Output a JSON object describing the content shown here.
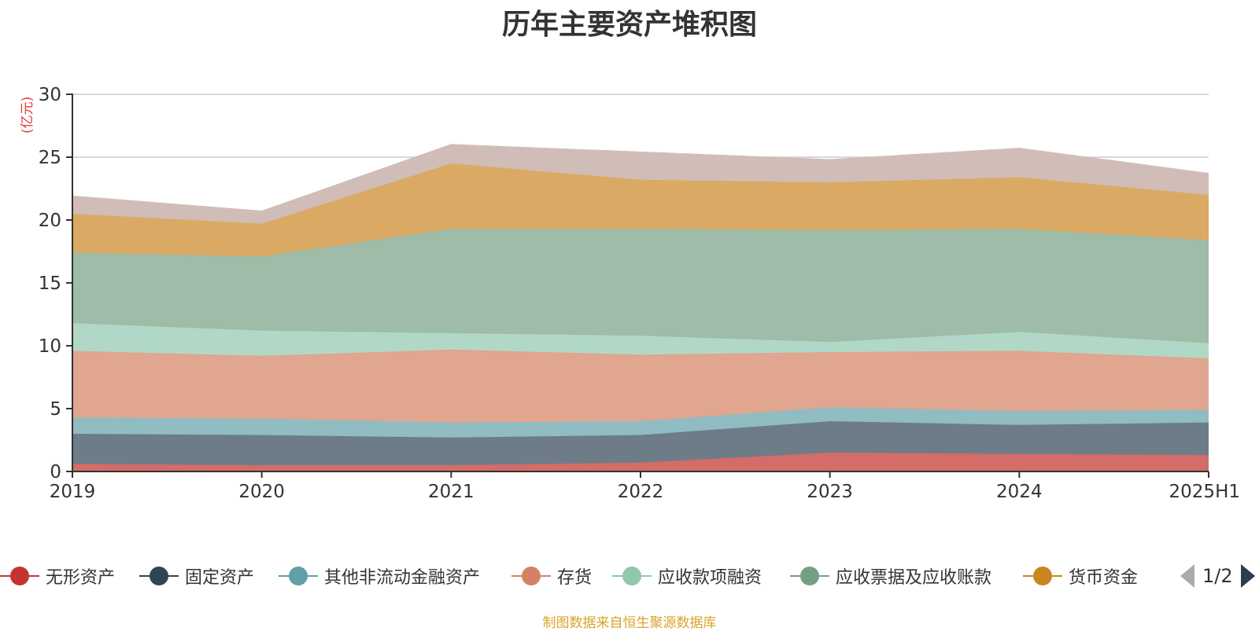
{
  "chart_data": {
    "type": "area",
    "stacked": true,
    "title": "历年主要资产堆积图",
    "ylabel": "(亿元)",
    "xlabel": "",
    "categories": [
      "2019",
      "2020",
      "2021",
      "2022",
      "2023",
      "2024",
      "2025H1"
    ],
    "ylim": [
      0,
      30
    ],
    "yticks": [
      0,
      5,
      10,
      15,
      20,
      25,
      30
    ],
    "grid": true,
    "legend_position": "bottom",
    "series": [
      {
        "name": "无形资产",
        "color": "#c23531",
        "fill": "#d46c69",
        "values": [
          0.6,
          0.5,
          0.5,
          0.7,
          1.5,
          1.4,
          1.3
        ]
      },
      {
        "name": "固定资产",
        "color": "#2f4554",
        "fill": "#6e7c87",
        "values": [
          2.4,
          2.4,
          2.2,
          2.2,
          2.5,
          2.3,
          2.6
        ]
      },
      {
        "name": "其他非流动金融资产",
        "color": "#61a0a8",
        "fill": "#90bcc2",
        "values": [
          1.3,
          1.3,
          1.2,
          1.1,
          1.1,
          1.1,
          1.0
        ]
      },
      {
        "name": "存货",
        "color": "#d48265",
        "fill": "#e0a690",
        "values": [
          5.3,
          5.0,
          5.8,
          5.3,
          4.4,
          4.8,
          4.1
        ]
      },
      {
        "name": "应收款项融资",
        "color": "#91c7ae",
        "fill": "#b1d8c6",
        "values": [
          2.2,
          2.0,
          1.3,
          1.5,
          0.8,
          1.5,
          1.2
        ]
      },
      {
        "name": "应收票据及应收账款",
        "color": "#749f83",
        "fill": "#9ebca8",
        "values": [
          5.6,
          5.9,
          8.3,
          8.5,
          8.9,
          8.2,
          8.2
        ]
      },
      {
        "name": "货币资金",
        "color": "#ca8622",
        "fill": "#daa964",
        "values": [
          3.1,
          2.6,
          5.2,
          3.9,
          3.8,
          4.1,
          3.6
        ]
      },
      {
        "name": "",
        "color": "#bda29a",
        "fill": "#d1bdb7",
        "values": [
          1.4,
          1.0,
          1.5,
          2.2,
          1.8,
          2.3,
          1.7
        ]
      }
    ]
  },
  "legend_pager": {
    "page": "1/2"
  },
  "source_note": "制图数据来自恒生聚源数据库"
}
